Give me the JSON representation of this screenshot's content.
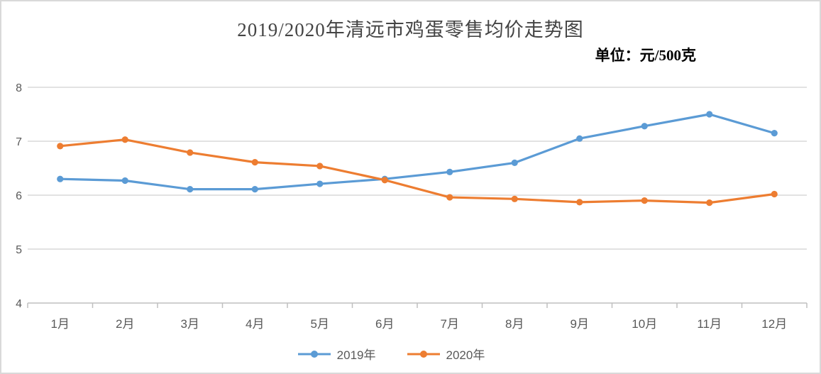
{
  "chart_data": {
    "type": "line",
    "title": "2019/2020年清远市鸡蛋零售均价走势图",
    "unit_label": "单位：元/500克",
    "categories": [
      "1月",
      "2月",
      "3月",
      "4月",
      "5月",
      "6月",
      "7月",
      "8月",
      "9月",
      "10月",
      "11月",
      "12月"
    ],
    "series": [
      {
        "name": "2019年",
        "color": "#5B9BD5",
        "values": [
          6.3,
          6.27,
          6.11,
          6.11,
          6.21,
          6.3,
          6.43,
          6.6,
          7.05,
          7.28,
          7.5,
          7.15
        ]
      },
      {
        "name": "2020年",
        "color": "#ED7D31",
        "values": [
          6.91,
          7.03,
          6.79,
          6.61,
          6.54,
          6.28,
          5.96,
          5.93,
          5.87,
          5.9,
          5.86,
          6.02
        ]
      }
    ],
    "ylim": [
      4,
      8
    ],
    "yticks": [
      4,
      5,
      6,
      7,
      8
    ],
    "grid": true,
    "legend_position": "bottom",
    "marker": "circle",
    "gridline_color": "#D9D9D9",
    "axis_color": "#BFBFBF",
    "label_color": "#595959"
  }
}
